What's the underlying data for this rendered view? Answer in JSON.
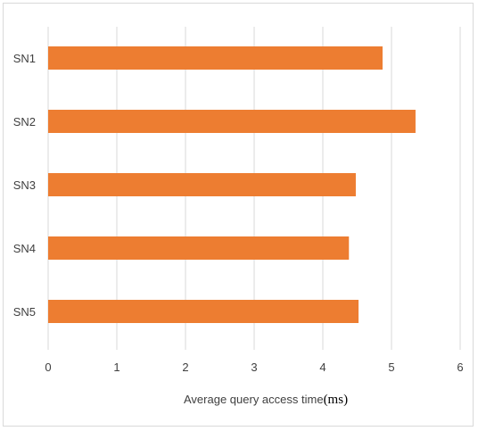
{
  "chart_data": {
    "type": "bar",
    "orientation": "horizontal",
    "categories": [
      "SN1",
      "SN2",
      "SN3",
      "SN4",
      "SN5"
    ],
    "values": [
      4.87,
      5.35,
      4.48,
      4.38,
      4.52
    ],
    "xlabel": "Average query access time",
    "xlabel_unit": "(ms)",
    "ylabel": "",
    "title": "",
    "xlim": [
      0,
      6
    ],
    "xticks": [
      "0",
      "1",
      "2",
      "3",
      "4",
      "5",
      "6"
    ],
    "grid": "vertical",
    "legend": "none",
    "bar_color": "#ed7d31",
    "grid_color": "#d9d9d9"
  }
}
